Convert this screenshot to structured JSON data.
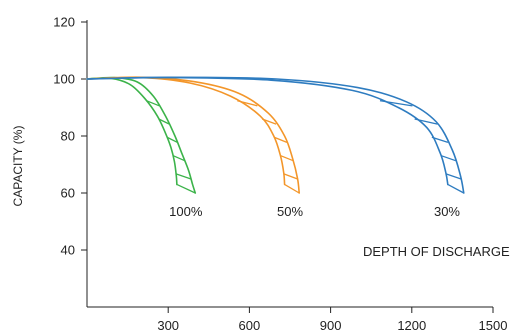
{
  "chart_data": {
    "type": "line",
    "title": "",
    "xlabel": "",
    "ylabel": "CAPACITY (%)",
    "xlim": [
      0,
      1500
    ],
    "ylim": [
      20,
      120
    ],
    "x_ticks": [
      300,
      600,
      900,
      1200,
      1500
    ],
    "y_ticks": [
      40,
      60,
      80,
      100,
      120
    ],
    "grid": false,
    "legend": "none",
    "annotation": "DEPTH OF DISCHARGE",
    "series": [
      {
        "name": "100%",
        "color": "#3cb34a",
        "upper": {
          "x": [
            0,
            100,
            185,
            245,
            290,
            325,
            350,
            375,
            390,
            400
          ],
          "y": [
            100,
            100.5,
            99,
            94,
            87,
            80,
            74,
            68,
            63,
            60
          ]
        },
        "lower": {
          "x": [
            0,
            90,
            160,
            215,
            260,
            290,
            310,
            323,
            330,
            332
          ],
          "y": [
            100,
            100.2,
            98,
            93,
            87,
            81,
            76,
            71,
            66,
            63
          ]
        }
      },
      {
        "name": "50%",
        "color": "#f3962a",
        "upper": {
          "x": [
            0,
            200,
            400,
            560,
            670,
            730,
            760,
            778,
            784
          ],
          "y": [
            100,
            100.6,
            99,
            95,
            88,
            80,
            72,
            65,
            60
          ]
        },
        "lower": {
          "x": [
            0,
            200,
            380,
            530,
            640,
            690,
            715,
            727,
            730
          ],
          "y": [
            100,
            100.5,
            98.6,
            94,
            87,
            80,
            73,
            67,
            63
          ]
        }
      },
      {
        "name": "30%",
        "color": "#2e7cc0",
        "upper": {
          "x": [
            0,
            300,
            700,
            1000,
            1180,
            1290,
            1350,
            1380,
            1392
          ],
          "y": [
            100,
            100.6,
            100,
            97,
            92,
            85,
            75,
            66,
            60
          ]
        },
        "lower": {
          "x": [
            0,
            300,
            680,
            980,
            1150,
            1255,
            1305,
            1326,
            1333
          ],
          "y": [
            100,
            100.5,
            99.6,
            96,
            90,
            83,
            74,
            67,
            63
          ]
        }
      }
    ],
    "series_labels": [
      {
        "text": "100%",
        "x": 365,
        "y": 52
      },
      {
        "text": "50%",
        "x": 750,
        "y": 52
      },
      {
        "text": "30%",
        "x": 1330,
        "y": 52
      }
    ]
  }
}
